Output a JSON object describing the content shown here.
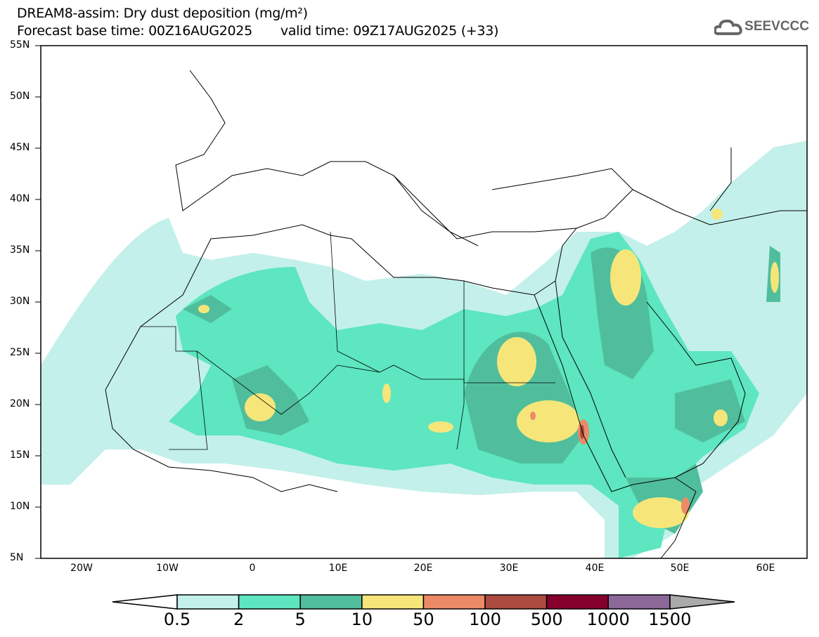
{
  "title": {
    "line1": "DREAM8-assim: Dry dust deposition (mg/m²)",
    "base_time": "Forecast base time: 00Z16AUG2025",
    "valid_time": "valid time: 09Z17AUG2025 (+33)"
  },
  "logo": {
    "text": "SEEVCCC",
    "icon": "cloud-icon"
  },
  "axes": {
    "lat_labels": [
      "55N",
      "50N",
      "45N",
      "40N",
      "35N",
      "30N",
      "25N",
      "20N",
      "15N",
      "10N",
      "5N"
    ],
    "lon_labels": [
      "20W",
      "10W",
      "0",
      "10E",
      "20E",
      "30E",
      "40E",
      "50E",
      "60E"
    ]
  },
  "colorbar": {
    "labels": [
      "0.5",
      "2",
      "5",
      "10",
      "50",
      "100",
      "500",
      "1000",
      "1500"
    ],
    "colors": [
      "#c3f0ea",
      "#5de6c0",
      "#50be9c",
      "#f6e67a",
      "#eb8a67",
      "#ac4a40",
      "#85002c",
      "#8c6898"
    ],
    "below_color": "#ffffff",
    "above_color": "#aaaaaa"
  }
}
